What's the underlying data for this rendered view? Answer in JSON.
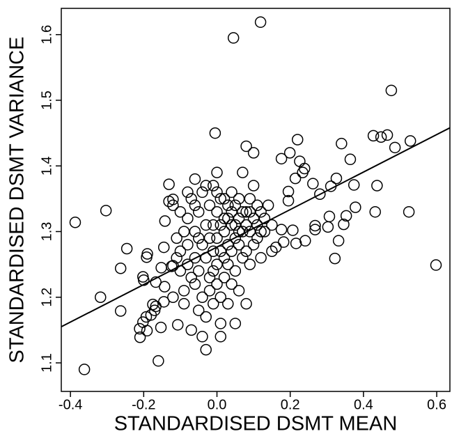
{
  "chart_data": {
    "type": "scatter",
    "xlabel": "STANDARDISED DSMT MEAN",
    "ylabel": "STANDARDISED DSMT VARIANCE",
    "xlim": [
      -0.425,
      0.636
    ],
    "ylim": [
      1.0565,
      1.64
    ],
    "xticks": [
      -0.4,
      -0.2,
      {
        "value": 0,
        "label": "0.0"
      },
      0.2,
      0.4,
      0.6
    ],
    "yticks": [
      1.1,
      1.2,
      1.3,
      1.4,
      1.5,
      1.6
    ],
    "color": "#000000",
    "trend_line": {
      "x": [
        -0.425,
        0.636
      ],
      "y": [
        1.155,
        1.458
      ]
    },
    "x": [
      -0.387,
      -0.362,
      -0.303,
      -0.318,
      -0.263,
      -0.246,
      -0.263,
      0.598,
      0.476,
      0.045,
      0.119,
      -0.005,
      0.524,
      0.528,
      0.486,
      0.465,
      0.448,
      0.427,
      0.437,
      0.432,
      0.34,
      0.364,
      0.374,
      0.378,
      0.353,
      0.346,
      0.326,
      0.332,
      0.322,
      0.307,
      0.303,
      0.311,
      0.281,
      0.262,
      0.239,
      0.234,
      0.226,
      0.22,
      0.214,
      0.216,
      0.199,
      0.195,
      0.195,
      0.176,
      0.241,
      0.268,
      0.268,
      0.207,
      0.182,
      0.176,
      0.161,
      -0.145,
      -0.191,
      -0.211,
      -0.21,
      -0.202,
      -0.193,
      -0.18,
      -0.17,
      -0.167,
      -0.16,
      -0.153,
      -0.175,
      -0.202,
      -0.19,
      -0.192,
      -0.2,
      -0.167,
      -0.143,
      -0.152,
      -0.145,
      -0.142,
      -0.131,
      -0.131,
      -0.12,
      -0.124,
      -0.12,
      -0.107,
      -0.11,
      -0.1,
      -0.1,
      -0.09,
      -0.09,
      -0.08,
      -0.08,
      -0.08,
      -0.07,
      -0.07,
      -0.07,
      -0.06,
      -0.06,
      -0.06,
      -0.06,
      -0.05,
      -0.05,
      -0.05,
      -0.04,
      -0.04,
      -0.04,
      -0.04,
      -0.03,
      -0.03,
      -0.03,
      -0.03,
      -0.02,
      -0.02,
      -0.02,
      -0.02,
      -0.01,
      -0.01,
      -0.01,
      -0.01,
      0.0,
      0.0,
      0.0,
      0.0,
      0.0,
      0.01,
      0.01,
      0.01,
      0.01,
      0.01,
      0.02,
      0.02,
      0.02,
      0.02,
      0.03,
      0.03,
      0.03,
      0.03,
      0.04,
      0.04,
      0.04,
      0.04,
      0.05,
      0.05,
      0.05,
      0.05,
      0.06,
      0.06,
      0.06,
      0.07,
      0.07,
      0.07,
      0.08,
      0.08,
      0.08,
      0.08,
      0.08,
      0.09,
      0.09,
      0.09,
      0.1,
      0.1,
      0.1,
      0.1,
      0.11,
      0.11,
      0.12,
      0.12,
      0.13,
      0.14,
      0.15,
      0.15,
      -0.12,
      -0.12,
      -0.11,
      0.03,
      0.02,
      -0.01,
      0.04,
      0.06,
      0.07,
      0.09,
      0.11,
      0.12,
      0.13,
      -0.05,
      -0.06,
      -0.08,
      -0.09,
      -0.1,
      0.0,
      0.01,
      -0.03,
      0.05,
      0.06
    ],
    "y": [
      1.314,
      1.09,
      1.332,
      1.2,
      1.244,
      1.274,
      1.179,
      1.249,
      1.515,
      1.595,
      1.619,
      1.45,
      1.33,
      1.438,
      1.428,
      1.447,
      1.444,
      1.446,
      1.37,
      1.33,
      1.434,
      1.41,
      1.371,
      1.337,
      1.324,
      1.311,
      1.381,
      1.286,
      1.259,
      1.323,
      1.307,
      1.369,
      1.357,
      1.373,
      1.396,
      1.39,
      1.407,
      1.44,
      1.381,
      1.282,
      1.42,
      1.361,
      1.347,
      1.411,
      1.286,
      1.309,
      1.303,
      1.302,
      1.284,
      1.303,
      1.276,
      1.193,
      1.149,
      1.152,
      1.139,
      1.162,
      1.17,
      1.173,
      1.18,
      1.186,
      1.103,
      1.154,
      1.189,
      1.231,
      1.266,
      1.261,
      1.226,
      1.223,
      1.216,
      1.245,
      1.276,
      1.316,
      1.346,
      1.372,
      1.349,
      1.247,
      1.248,
      1.158,
      1.29,
      1.27,
      1.24,
      1.21,
      1.19,
      1.32,
      1.28,
      1.25,
      1.35,
      1.23,
      1.15,
      1.38,
      1.3,
      1.26,
      1.22,
      1.18,
      1.33,
      1.24,
      1.36,
      1.28,
      1.2,
      1.14,
      1.31,
      1.26,
      1.17,
      1.12,
      1.34,
      1.29,
      1.23,
      1.21,
      1.37,
      1.27,
      1.24,
      1.19,
      1.39,
      1.33,
      1.29,
      1.25,
      1.22,
      1.31,
      1.27,
      1.2,
      1.16,
      1.14,
      1.35,
      1.3,
      1.26,
      1.23,
      1.32,
      1.28,
      1.25,
      1.19,
      1.36,
      1.31,
      1.27,
      1.22,
      1.34,
      1.29,
      1.24,
      1.16,
      1.32,
      1.28,
      1.21,
      1.3,
      1.26,
      1.39,
      1.33,
      1.31,
      1.27,
      1.43,
      1.19,
      1.35,
      1.3,
      1.25,
      1.32,
      1.28,
      1.42,
      1.37,
      1.31,
      1.29,
      1.33,
      1.26,
      1.3,
      1.34,
      1.27,
      1.31,
      1.34,
      1.2,
      1.26,
      1.34,
      1.32,
      1.31,
      1.33,
      1.35,
      1.33,
      1.33,
      1.34,
      1.3,
      1.32,
      1.29,
      1.34,
      1.36,
      1.3,
      1.33,
      1.36,
      1.35,
      1.37,
      1.31,
      1.3
    ]
  }
}
